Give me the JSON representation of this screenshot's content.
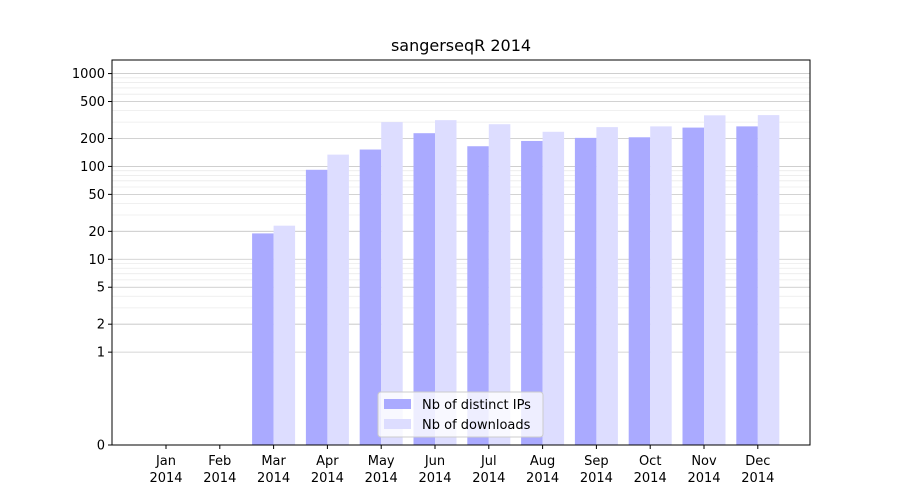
{
  "chart_data": {
    "type": "bar",
    "title": "sangerseqR 2014",
    "xlabel": "",
    "ylabel": "",
    "yscale": "symlog",
    "ylim": [
      0,
      1400
    ],
    "yticks": [
      0,
      1,
      2,
      5,
      10,
      20,
      50,
      100,
      200,
      500,
      1000
    ],
    "grid": true,
    "legend_position": "bottom-center",
    "categories": [
      {
        "month": "Jan",
        "year": "2014"
      },
      {
        "month": "Feb",
        "year": "2014"
      },
      {
        "month": "Mar",
        "year": "2014"
      },
      {
        "month": "Apr",
        "year": "2014"
      },
      {
        "month": "May",
        "year": "2014"
      },
      {
        "month": "Jun",
        "year": "2014"
      },
      {
        "month": "Jul",
        "year": "2014"
      },
      {
        "month": "Aug",
        "year": "2014"
      },
      {
        "month": "Sep",
        "year": "2014"
      },
      {
        "month": "Oct",
        "year": "2014"
      },
      {
        "month": "Nov",
        "year": "2014"
      },
      {
        "month": "Dec",
        "year": "2014"
      }
    ],
    "series": [
      {
        "name": "Nb of distinct IPs",
        "color": "#aaaaff",
        "values": [
          0,
          0,
          19,
          92,
          152,
          228,
          165,
          188,
          203,
          206,
          262,
          270
        ]
      },
      {
        "name": "Nb of downloads",
        "color": "#ddddff",
        "values": [
          0,
          0,
          23,
          134,
          300,
          315,
          285,
          236,
          265,
          270,
          355,
          357
        ]
      }
    ]
  }
}
